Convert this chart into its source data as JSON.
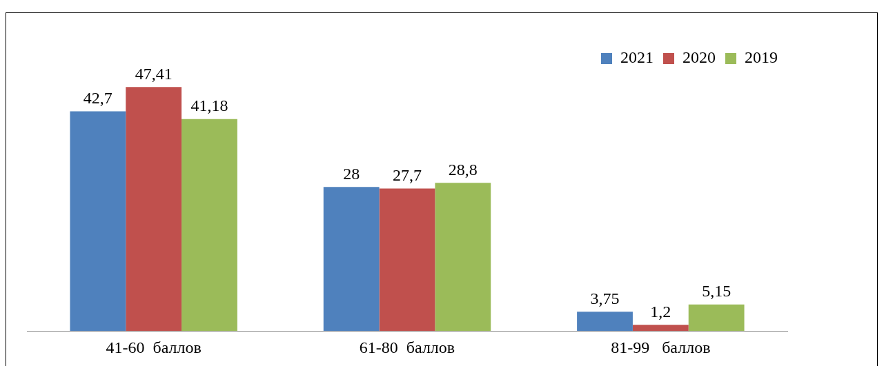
{
  "chart_data": {
    "type": "bar",
    "categories": [
      "41-60  баллов",
      "61-80  баллов",
      "81-99   баллов"
    ],
    "series": [
      {
        "name": "2021",
        "color": "#4f81bd",
        "values": [
          42.7,
          28,
          3.75
        ],
        "value_labels": [
          "42,7",
          "28",
          "3,75"
        ]
      },
      {
        "name": "2020",
        "color": "#c0504d",
        "values": [
          47.41,
          27.7,
          1.2
        ],
        "value_labels": [
          "47,41",
          "27,7",
          "1,2"
        ]
      },
      {
        "name": "2019",
        "color": "#9bbb59",
        "values": [
          41.18,
          28.8,
          5.15
        ],
        "value_labels": [
          "41,18",
          "28,8",
          "5,15"
        ]
      }
    ],
    "legend": "top right",
    "grid": false
  }
}
